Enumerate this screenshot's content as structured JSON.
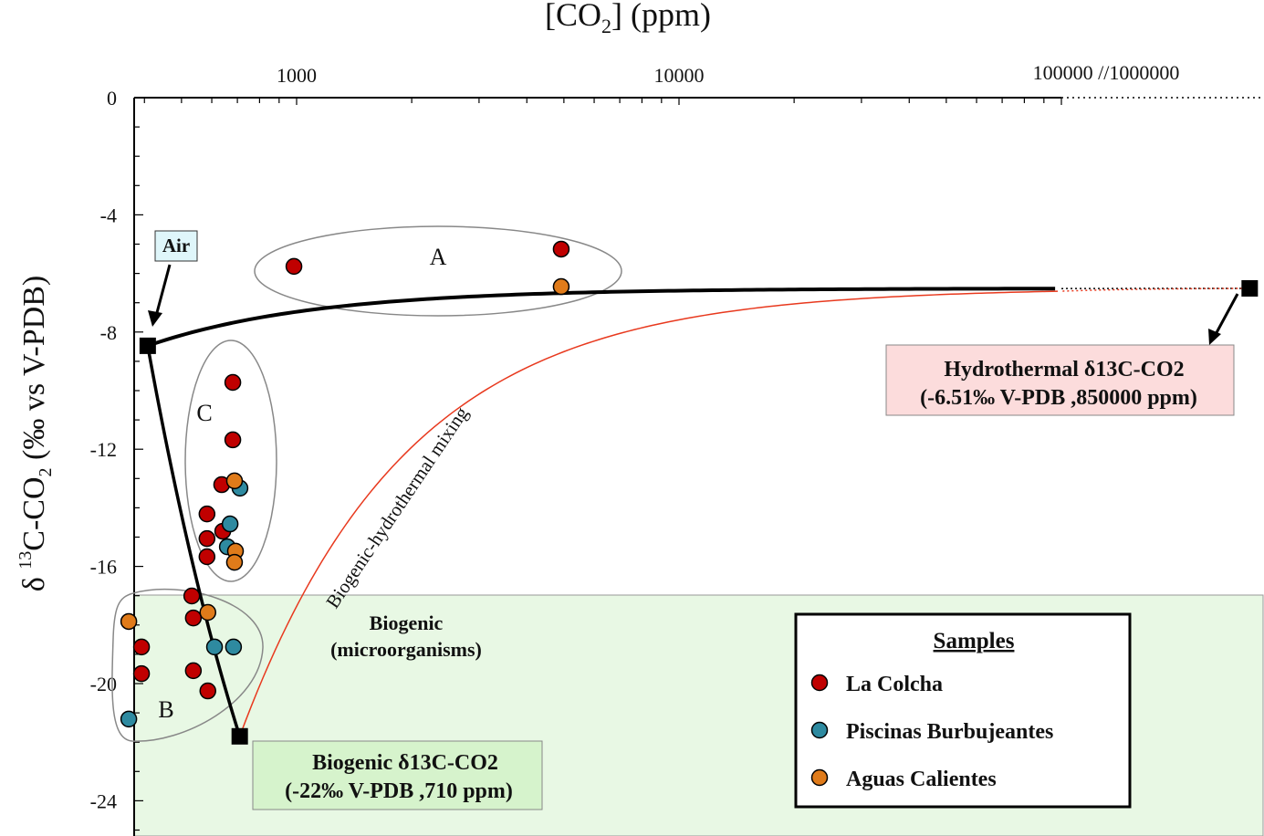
{
  "chart_data": {
    "type": "scatter",
    "xlabel": "[CO2] (ppm)",
    "ylabel": "δ 13C-CO2 (‰ vs V-PDB)",
    "x_scale": "log",
    "x_axis_position": "top",
    "xlim": [
      376,
      1000000
    ],
    "x_break_label": "100000 //1000000",
    "x_ticks": [
      "1000",
      "10000"
    ],
    "ylim": [
      -25.1,
      0
    ],
    "y_ticks": [
      "0",
      "-4",
      "-8",
      "-12",
      "-16",
      "-20",
      "-24"
    ],
    "grid": false,
    "series": [
      {
        "name": "La Colcha",
        "color": "#c00000",
        "points": [
          [
            984,
            -5.76
          ],
          [
            4920,
            -5.17
          ],
          [
            681,
            -9.72
          ],
          [
            681,
            -11.68
          ],
          [
            637,
            -13.21
          ],
          [
            583,
            -14.21
          ],
          [
            641,
            -14.8
          ],
          [
            583,
            -15.05
          ],
          [
            583,
            -15.67
          ],
          [
            532,
            -17.01
          ],
          [
            537,
            -17.76
          ],
          [
            393,
            -18.75
          ],
          [
            393,
            -19.66
          ],
          [
            537,
            -19.56
          ],
          [
            586,
            -20.25
          ]
        ]
      },
      {
        "name": "Piscinas Burbujeantes",
        "color": "#2e8aa0",
        "points": [
          [
            711,
            -13.33
          ],
          [
            670,
            -14.55
          ],
          [
            659,
            -15.33
          ],
          [
            610,
            -18.75
          ],
          [
            684,
            -18.75
          ],
          [
            364,
            -21.21
          ]
        ]
      },
      {
        "name": "Aguas Calientes",
        "color": "#e07b1a",
        "points": [
          [
            4920,
            -6.45
          ],
          [
            688,
            -13.08
          ],
          [
            692,
            -15.48
          ],
          [
            688,
            -15.86
          ],
          [
            586,
            -17.57
          ],
          [
            364,
            -17.88
          ]
        ]
      }
    ],
    "end_members": {
      "air": {
        "label": "Air",
        "ppm": 408,
        "d13c": -8.47
      },
      "biogenic": {
        "title": "Biogenic δ13C-CO2",
        "detail": "(-22‰ V-PDB ,710 ppm)",
        "ppm": 710,
        "d13c": -21.8
      },
      "hydrothermal": {
        "title": "Hydrothermal δ13C-CO2",
        "detail": "(-6.51‰ V-PDB ,850000 ppm)",
        "ppm": 850000,
        "d13c": -6.51
      }
    },
    "annotations": {
      "groupA": "A",
      "groupB": "B",
      "groupC": "C",
      "mixing": "Biogenic-hydrothermal mixing",
      "biogenic_region": "Biogenic",
      "biogenic_region_sub": "(microorganisms)",
      "biogenic_region_top": -17
    },
    "legend": {
      "title": "Samples",
      "position": "bottom-right"
    }
  }
}
